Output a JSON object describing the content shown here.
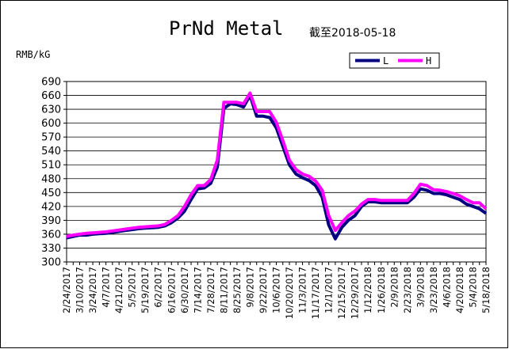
{
  "chart_data": {
    "type": "line",
    "title": "PrNd Metal",
    "subtitle": "截至2018-05-18",
    "ylabel": "RMB/kG",
    "xlabel": "",
    "ylim": [
      300,
      690
    ],
    "yticks": [
      300,
      330,
      360,
      390,
      420,
      450,
      480,
      510,
      540,
      570,
      600,
      630,
      660,
      690
    ],
    "grid": true,
    "legend_position": "top-right",
    "xticks": [
      "2/24/2017",
      "3/10/2017",
      "3/24/2017",
      "4/7/2017",
      "4/21/2017",
      "5/5/2017",
      "5/19/2017",
      "6/2/2017",
      "6/16/2017",
      "6/30/2017",
      "7/14/2017",
      "7/28/2017",
      "8/11/2017",
      "8/25/2017",
      "9/8/2017",
      "9/22/2017",
      "10/6/2017",
      "10/20/2017",
      "11/3/2017",
      "11/17/2017",
      "12/1/2017",
      "12/15/2017",
      "12/29/2017",
      "1/12/2018",
      "1/26/2018",
      "2/9/2018",
      "2/23/2018",
      "3/9/2018",
      "3/23/2018",
      "4/6/2018",
      "4/20/2018",
      "5/4/2018",
      "5/18/2018"
    ],
    "x": [
      "2/24/2017",
      "3/3/2017",
      "3/10/2017",
      "3/17/2017",
      "3/24/2017",
      "3/31/2017",
      "4/7/2017",
      "4/14/2017",
      "4/21/2017",
      "4/28/2017",
      "5/5/2017",
      "5/12/2017",
      "5/19/2017",
      "5/26/2017",
      "6/2/2017",
      "6/9/2017",
      "6/16/2017",
      "6/23/2017",
      "6/30/2017",
      "7/7/2017",
      "7/14/2017",
      "7/21/2017",
      "7/28/2017",
      "8/4/2017",
      "8/11/2017",
      "8/18/2017",
      "8/25/2017",
      "9/1/2017",
      "9/8/2017",
      "9/15/2017",
      "9/22/2017",
      "9/29/2017",
      "10/6/2017",
      "10/13/2017",
      "10/20/2017",
      "10/27/2017",
      "11/3/2017",
      "11/10/2017",
      "11/17/2017",
      "11/24/2017",
      "12/1/2017",
      "12/8/2017",
      "12/15/2017",
      "12/22/2017",
      "12/29/2017",
      "1/5/2018",
      "1/12/2018",
      "1/19/2018",
      "1/26/2018",
      "2/2/2018",
      "2/9/2018",
      "2/16/2018",
      "2/23/2018",
      "3/2/2018",
      "3/9/2018",
      "3/16/2018",
      "3/23/2018",
      "3/30/2018",
      "4/6/2018",
      "4/13/2018",
      "4/20/2018",
      "4/27/2018",
      "5/4/2018",
      "5/11/2018",
      "5/18/2018"
    ],
    "series": [
      {
        "name": "L",
        "color": "#000080",
        "values": [
          352,
          355,
          358,
          358,
          360,
          361,
          362,
          364,
          366,
          368,
          370,
          372,
          373,
          374,
          375,
          378,
          385,
          395,
          410,
          435,
          458,
          460,
          470,
          505,
          632,
          642,
          640,
          635,
          660,
          615,
          615,
          612,
          590,
          550,
          510,
          490,
          482,
          476,
          465,
          440,
          380,
          350,
          375,
          390,
          400,
          420,
          430,
          430,
          428,
          428,
          428,
          428,
          428,
          440,
          458,
          455,
          448,
          448,
          445,
          440,
          435,
          425,
          420,
          415,
          405
        ]
      },
      {
        "name": "H",
        "color": "#ff00ff",
        "values": [
          355,
          358,
          360,
          362,
          363,
          364,
          365,
          367,
          369,
          371,
          373,
          375,
          376,
          377,
          378,
          381,
          390,
          400,
          420,
          445,
          465,
          465,
          478,
          520,
          645,
          645,
          645,
          642,
          665,
          625,
          625,
          625,
          602,
          562,
          520,
          500,
          490,
          485,
          475,
          455,
          400,
          368,
          385,
          400,
          410,
          425,
          435,
          435,
          433,
          433,
          433,
          433,
          433,
          448,
          468,
          465,
          456,
          455,
          452,
          448,
          443,
          435,
          428,
          428,
          415
        ]
      }
    ]
  }
}
